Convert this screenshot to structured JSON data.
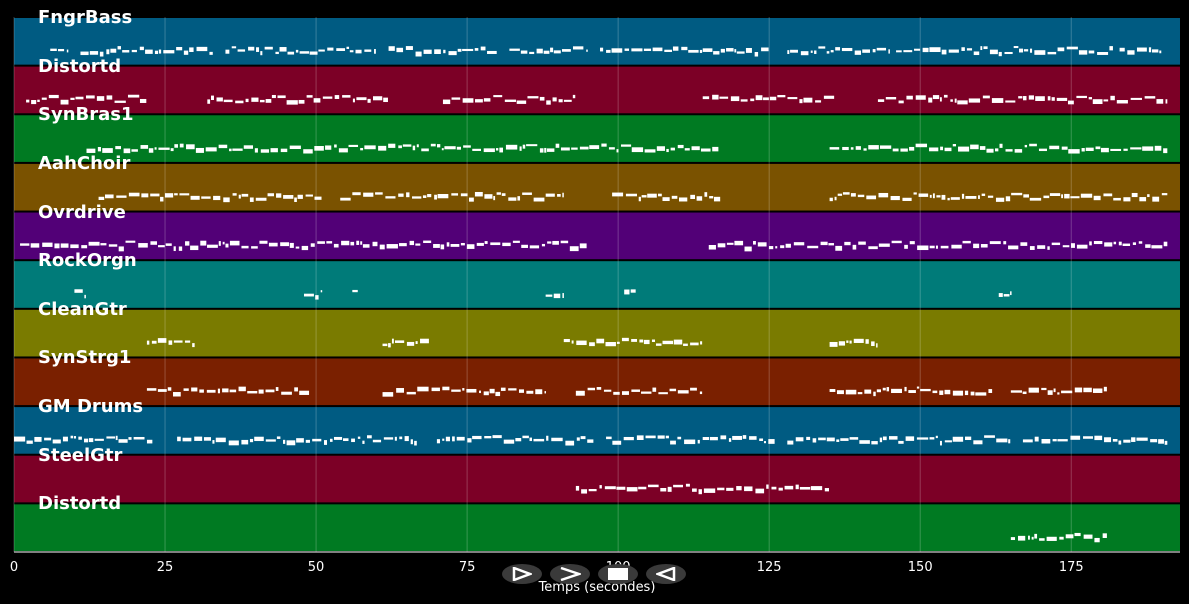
{
  "tracks": [
    {
      "name": "FngrBass",
      "color": "#005b82"
    },
    {
      "name": "Distortd",
      "color": "#7c0026"
    },
    {
      "name": "SynBras1",
      "color": "#007a22"
    },
    {
      "name": "AahChoir",
      "color": "#7a5200"
    },
    {
      "name": "Ovrdrive",
      "color": "#520077"
    },
    {
      "name": "RockOrgn",
      "color": "#007b79"
    },
    {
      "name": "CleanGtr",
      "color": "#7a7b00"
    },
    {
      "name": "SynStrg1",
      "color": "#7a2000"
    },
    {
      "name": "GM Drums",
      "color": "#005b82"
    },
    {
      "name": "SteelGtr",
      "color": "#7c0026"
    },
    {
      "name": "Distortd",
      "color": "#007a22"
    }
  ],
  "x_axis": {
    "label": "Temps (secondes)",
    "min": 0,
    "max": 193,
    "ticks": [
      "0",
      "25",
      "50",
      "75",
      "100",
      "125",
      "150",
      "175"
    ]
  },
  "controls": [
    {
      "name": "play-icon"
    },
    {
      "name": "forward-icon"
    },
    {
      "name": "stop-icon"
    },
    {
      "name": "back-icon"
    }
  ],
  "note_segments": [
    [
      [
        6,
        9
      ],
      [
        11,
        33
      ],
      [
        35,
        60
      ],
      [
        62,
        80
      ],
      [
        82,
        95
      ],
      [
        97,
        114
      ],
      [
        114,
        125
      ],
      [
        128,
        145
      ],
      [
        146,
        182
      ],
      [
        183,
        190
      ]
    ],
    [
      [
        2,
        22
      ],
      [
        32,
        62
      ],
      [
        71,
        93
      ],
      [
        114,
        136
      ],
      [
        143,
        191
      ]
    ],
    [
      [
        12,
        117
      ],
      [
        135,
        191
      ]
    ],
    [
      [
        14,
        51
      ],
      [
        54,
        91
      ],
      [
        99,
        117
      ],
      [
        135,
        191
      ]
    ],
    [
      [
        1,
        95
      ],
      [
        115,
        191
      ]
    ],
    [
      [
        10,
        12
      ],
      [
        48,
        51
      ],
      [
        56,
        57
      ],
      [
        88,
        91
      ],
      [
        101,
        103
      ],
      [
        163,
        165
      ]
    ],
    [
      [
        22,
        30
      ],
      [
        61,
        69
      ],
      [
        91,
        114
      ],
      [
        135,
        143
      ]
    ],
    [
      [
        22,
        49
      ],
      [
        61,
        88
      ],
      [
        93,
        114
      ],
      [
        135,
        162
      ],
      [
        165,
        181
      ]
    ],
    [
      [
        0,
        23
      ],
      [
        27,
        67
      ],
      [
        70,
        96
      ],
      [
        98,
        126
      ],
      [
        128,
        165
      ],
      [
        167,
        191
      ]
    ],
    [
      [
        93,
        135
      ]
    ],
    [
      [
        165,
        181
      ]
    ]
  ]
}
